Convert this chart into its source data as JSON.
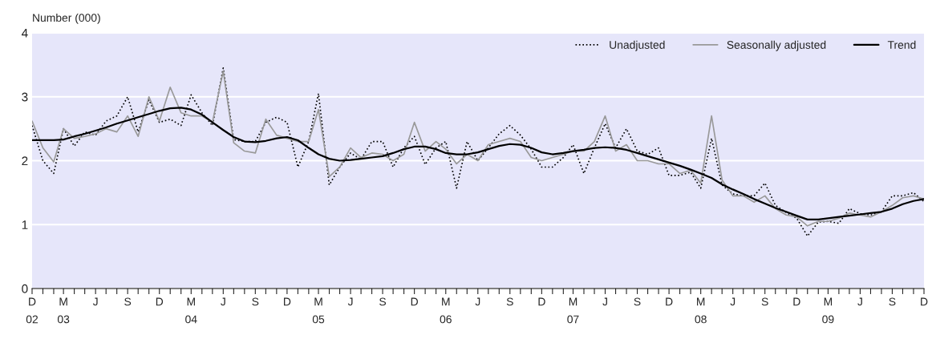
{
  "chart_data": {
    "type": "line",
    "ylabel": "Number (000)",
    "ylim": [
      0,
      4
    ],
    "yticks": [
      0,
      1,
      2,
      3,
      4
    ],
    "grid": "y",
    "legend": "top right",
    "xlim": [
      "2002-12",
      "2009-12"
    ],
    "xticks": [
      {
        "value": "2002-12",
        "label": "D\n02"
      },
      {
        "value": "2003-01",
        "label": null
      },
      {
        "value": "2003-02",
        "label": null
      },
      {
        "value": "2003-03",
        "label": "M\n03"
      },
      {
        "value": "2003-04",
        "label": null
      },
      {
        "value": "2003-05",
        "label": null
      },
      {
        "value": "2003-06",
        "label": "J"
      },
      {
        "value": "2003-07",
        "label": null
      },
      {
        "value": "2003-08",
        "label": null
      },
      {
        "value": "2003-09",
        "label": "S"
      },
      {
        "value": "2003-10",
        "label": null
      },
      {
        "value": "2003-11",
        "label": null
      },
      {
        "value": "2003-12",
        "label": "D"
      },
      {
        "value": "2004-01",
        "label": null
      },
      {
        "value": "2004-02",
        "label": null
      },
      {
        "value": "2004-03",
        "label": "M\n04"
      },
      {
        "value": "2004-04",
        "label": null
      },
      {
        "value": "2004-05",
        "label": null
      },
      {
        "value": "2004-06",
        "label": "J"
      },
      {
        "value": "2004-07",
        "label": null
      },
      {
        "value": "2004-08",
        "label": null
      },
      {
        "value": "2004-09",
        "label": "S"
      },
      {
        "value": "2004-10",
        "label": null
      },
      {
        "value": "2004-11",
        "label": null
      },
      {
        "value": "2004-12",
        "label": "D"
      },
      {
        "value": "2005-01",
        "label": null
      },
      {
        "value": "2005-02",
        "label": null
      },
      {
        "value": "2005-03",
        "label": "M\n05"
      },
      {
        "value": "2005-04",
        "label": null
      },
      {
        "value": "2005-05",
        "label": null
      },
      {
        "value": "2005-06",
        "label": "J"
      },
      {
        "value": "2005-07",
        "label": null
      },
      {
        "value": "2005-08",
        "label": null
      },
      {
        "value": "2005-09",
        "label": "S"
      },
      {
        "value": "2005-10",
        "label": null
      },
      {
        "value": "2005-11",
        "label": null
      },
      {
        "value": "2005-12",
        "label": "D"
      },
      {
        "value": "2006-01",
        "label": null
      },
      {
        "value": "2006-02",
        "label": null
      },
      {
        "value": "2006-03",
        "label": "M\n06"
      },
      {
        "value": "2006-04",
        "label": null
      },
      {
        "value": "2006-05",
        "label": null
      },
      {
        "value": "2006-06",
        "label": "J"
      },
      {
        "value": "2006-07",
        "label": null
      },
      {
        "value": "2006-08",
        "label": null
      },
      {
        "value": "2006-09",
        "label": "S"
      },
      {
        "value": "2006-10",
        "label": null
      },
      {
        "value": "2006-11",
        "label": null
      },
      {
        "value": "2006-12",
        "label": "D"
      },
      {
        "value": "2007-01",
        "label": null
      },
      {
        "value": "2007-02",
        "label": null
      },
      {
        "value": "2007-03",
        "label": "M\n07"
      },
      {
        "value": "2007-04",
        "label": null
      },
      {
        "value": "2007-05",
        "label": null
      },
      {
        "value": "2007-06",
        "label": "J"
      },
      {
        "value": "2007-07",
        "label": null
      },
      {
        "value": "2007-08",
        "label": null
      },
      {
        "value": "2007-09",
        "label": "S"
      },
      {
        "value": "2007-10",
        "label": null
      },
      {
        "value": "2007-11",
        "label": null
      },
      {
        "value": "2007-12",
        "label": "D"
      },
      {
        "value": "2008-01",
        "label": null
      },
      {
        "value": "2008-02",
        "label": null
      },
      {
        "value": "2008-03",
        "label": "M\n08"
      },
      {
        "value": "2008-04",
        "label": null
      },
      {
        "value": "2008-05",
        "label": null
      },
      {
        "value": "2008-06",
        "label": "J"
      },
      {
        "value": "2008-07",
        "label": null
      },
      {
        "value": "2008-08",
        "label": null
      },
      {
        "value": "2008-09",
        "label": "S"
      },
      {
        "value": "2008-10",
        "label": null
      },
      {
        "value": "2008-11",
        "label": null
      },
      {
        "value": "2008-12",
        "label": "D"
      },
      {
        "value": "2009-01",
        "label": null
      },
      {
        "value": "2009-02",
        "label": null
      },
      {
        "value": "2009-03",
        "label": "M\n09"
      },
      {
        "value": "2009-04",
        "label": null
      },
      {
        "value": "2009-05",
        "label": null
      },
      {
        "value": "2009-06",
        "label": "J"
      },
      {
        "value": "2009-07",
        "label": null
      },
      {
        "value": "2009-08",
        "label": null
      },
      {
        "value": "2009-09",
        "label": "S"
      },
      {
        "value": "2009-10",
        "label": null
      },
      {
        "value": "2009-11",
        "label": null
      },
      {
        "value": "2009-12",
        "label": "D"
      }
    ],
    "x": [
      "2002-12",
      "2003-01",
      "2003-02",
      "2003-03",
      "2003-04",
      "2003-05",
      "2003-06",
      "2003-07",
      "2003-08",
      "2003-09",
      "2003-10",
      "2003-11",
      "2003-12",
      "2004-01",
      "2004-02",
      "2004-03",
      "2004-04",
      "2004-05",
      "2004-06",
      "2004-07",
      "2004-08",
      "2004-09",
      "2004-10",
      "2004-11",
      "2004-12",
      "2005-01",
      "2005-02",
      "2005-03",
      "2005-04",
      "2005-05",
      "2005-06",
      "2005-07",
      "2005-08",
      "2005-09",
      "2005-10",
      "2005-11",
      "2005-12",
      "2006-01",
      "2006-02",
      "2006-03",
      "2006-04",
      "2006-05",
      "2006-06",
      "2006-07",
      "2006-08",
      "2006-09",
      "2006-10",
      "2006-11",
      "2006-12",
      "2007-01",
      "2007-02",
      "2007-03",
      "2007-04",
      "2007-05",
      "2007-06",
      "2007-07",
      "2007-08",
      "2007-09",
      "2007-10",
      "2007-11",
      "2007-12",
      "2008-01",
      "2008-02",
      "2008-03",
      "2008-04",
      "2008-05",
      "2008-06",
      "2008-07",
      "2008-08",
      "2008-09",
      "2008-10",
      "2008-11",
      "2008-12",
      "2009-01",
      "2009-02",
      "2009-03",
      "2009-04",
      "2009-05",
      "2009-06",
      "2009-07",
      "2009-08",
      "2009-09",
      "2009-10",
      "2009-11",
      "2009-12"
    ],
    "series": [
      {
        "name": "Unadjusted",
        "color": "#000000",
        "line_style": "dotted",
        "values": [
          2.55,
          2.0,
          1.8,
          2.5,
          2.23,
          2.45,
          2.4,
          2.62,
          2.7,
          3.0,
          2.45,
          2.95,
          2.6,
          2.65,
          2.55,
          3.03,
          2.75,
          2.55,
          3.45,
          2.33,
          2.3,
          2.3,
          2.6,
          2.68,
          2.6,
          1.9,
          2.3,
          3.05,
          1.62,
          1.9,
          2.12,
          2.02,
          2.3,
          2.3,
          1.9,
          2.2,
          2.38,
          1.94,
          2.2,
          2.3,
          1.57,
          2.3,
          2.0,
          2.2,
          2.42,
          2.55,
          2.4,
          2.18,
          1.9,
          1.9,
          2.05,
          2.25,
          1.8,
          2.2,
          2.58,
          2.2,
          2.5,
          2.15,
          2.1,
          2.2,
          1.77,
          1.77,
          1.82,
          1.57,
          2.35,
          1.62,
          1.48,
          1.45,
          1.45,
          1.65,
          1.3,
          1.19,
          1.1,
          0.82,
          1.04,
          1.05,
          1.02,
          1.25,
          1.17,
          1.15,
          1.2,
          1.45,
          1.45,
          1.5,
          1.36
        ]
      },
      {
        "name": "Seasonally adjusted",
        "color": "#999999",
        "line_style": "solid",
        "values": [
          2.62,
          2.2,
          1.98,
          2.5,
          2.35,
          2.38,
          2.42,
          2.5,
          2.45,
          2.7,
          2.38,
          3.0,
          2.62,
          3.15,
          2.75,
          2.7,
          2.7,
          2.6,
          3.4,
          2.28,
          2.15,
          2.12,
          2.65,
          2.4,
          2.35,
          2.3,
          2.3,
          2.8,
          1.75,
          1.9,
          2.2,
          2.05,
          2.12,
          2.1,
          2.0,
          2.1,
          2.6,
          2.15,
          2.3,
          2.18,
          1.95,
          2.1,
          2.0,
          2.25,
          2.3,
          2.35,
          2.3,
          2.05,
          2.0,
          2.05,
          2.1,
          2.15,
          2.15,
          2.3,
          2.7,
          2.15,
          2.25,
          2.0,
          2.0,
          1.95,
          1.95,
          1.8,
          1.85,
          1.65,
          2.7,
          1.7,
          1.45,
          1.45,
          1.35,
          1.45,
          1.25,
          1.15,
          1.12,
          0.98,
          1.05,
          1.05,
          1.1,
          1.18,
          1.15,
          1.12,
          1.2,
          1.3,
          1.42,
          1.45,
          1.4
        ]
      },
      {
        "name": "Trend",
        "color": "#000000",
        "line_style": "solid",
        "values": [
          2.32,
          2.32,
          2.32,
          2.33,
          2.38,
          2.42,
          2.47,
          2.52,
          2.58,
          2.63,
          2.68,
          2.73,
          2.78,
          2.82,
          2.83,
          2.8,
          2.72,
          2.6,
          2.48,
          2.37,
          2.3,
          2.29,
          2.31,
          2.35,
          2.37,
          2.32,
          2.2,
          2.1,
          2.03,
          2.0,
          2.01,
          2.03,
          2.05,
          2.07,
          2.12,
          2.18,
          2.22,
          2.22,
          2.18,
          2.12,
          2.1,
          2.1,
          2.13,
          2.18,
          2.23,
          2.26,
          2.25,
          2.2,
          2.13,
          2.1,
          2.12,
          2.15,
          2.17,
          2.2,
          2.21,
          2.2,
          2.17,
          2.12,
          2.07,
          2.02,
          1.97,
          1.92,
          1.86,
          1.8,
          1.73,
          1.63,
          1.55,
          1.48,
          1.4,
          1.33,
          1.26,
          1.2,
          1.14,
          1.08,
          1.08,
          1.1,
          1.12,
          1.14,
          1.16,
          1.18,
          1.2,
          1.25,
          1.32,
          1.37,
          1.4
        ]
      }
    ]
  }
}
